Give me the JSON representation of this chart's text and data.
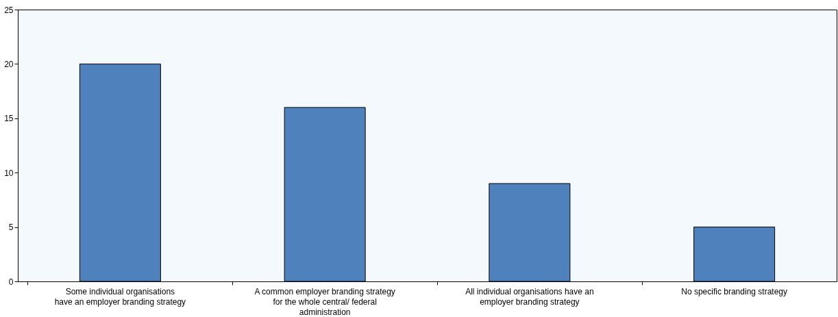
{
  "chart_data": {
    "type": "bar",
    "categories": [
      "Some individual organisations\nhave an employer branding strategy",
      "A common employer branding strategy\nfor the whole central/ federal\nadministration",
      "All individual organisations have an\nemployer branding strategy",
      "No specific branding strategy"
    ],
    "values": [
      20,
      16,
      9,
      5
    ],
    "color": "#4f81bd",
    "ylim": [
      0,
      25
    ],
    "yticks": [
      0,
      5,
      10,
      15,
      20,
      25
    ],
    "grid": false
  }
}
